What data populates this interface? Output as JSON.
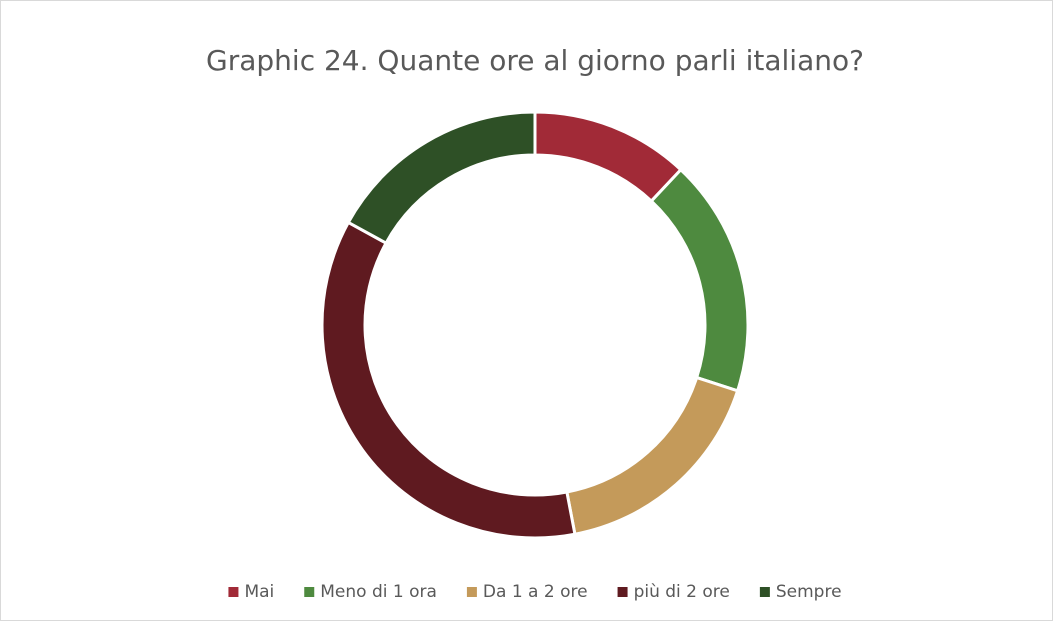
{
  "chart_data": {
    "type": "donut",
    "title": "Graphic 24. Quante ore al giorno parli italiano?",
    "categories": [
      "Mai",
      "Meno di 1 ora",
      "Da 1 a 2 ore",
      "più di 2 ore",
      "Sempre"
    ],
    "values": [
      12,
      18,
      17,
      36,
      17
    ],
    "colors": [
      "#a12a37",
      "#4e8a3f",
      "#c49a5a",
      "#5f1a20",
      "#2e5026"
    ],
    "legend": "bottom"
  }
}
